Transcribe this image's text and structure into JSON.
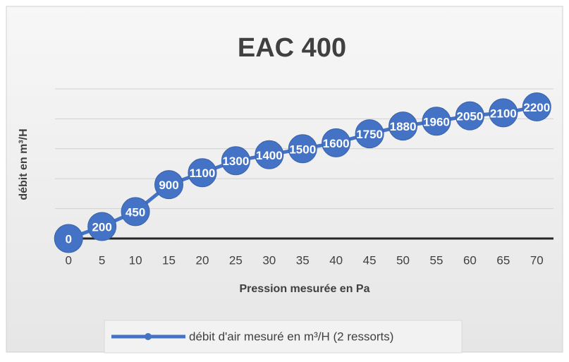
{
  "chart_data": {
    "type": "line",
    "title": "EAC 400",
    "x_label": "Pression mesurée en Pa",
    "y_label": "débit en m³/H",
    "categories": [
      "0",
      "5",
      "10",
      "15",
      "20",
      "25",
      "30",
      "35",
      "40",
      "45",
      "50",
      "55",
      "60",
      "65",
      "70"
    ],
    "series": [
      {
        "name": "débit d'air mesuré en m³/H (2 ressorts)",
        "color": "#4472c4",
        "values": [
          0,
          200,
          450,
          900,
          1100,
          1300,
          1400,
          1500,
          1600,
          1750,
          1880,
          1960,
          2050,
          2100,
          2200
        ]
      }
    ],
    "ylim": [
      0,
      2500
    ],
    "yticks": [
      0,
      500,
      1000,
      1500,
      2000,
      2500
    ],
    "grid": true,
    "legend": "bottom"
  }
}
